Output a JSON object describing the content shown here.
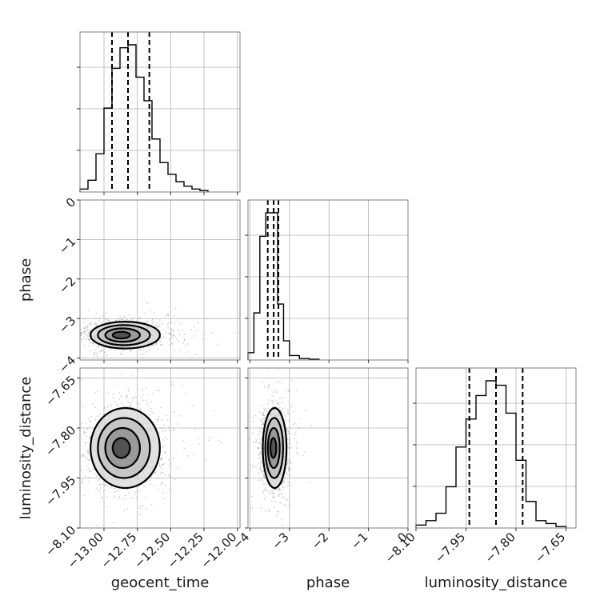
{
  "chart_data": {
    "type": "corner",
    "parameters": [
      "geocent_time",
      "phase",
      "luminosity_distance"
    ],
    "grid": true,
    "axes": {
      "geocent_time": {
        "label": "geocent_time",
        "lim": [
          -13.18,
          -11.98
        ],
        "ticks": [
          -13.0,
          -12.75,
          -12.5,
          -12.25,
          -12.0
        ],
        "tick_labels": [
          "−13.00",
          "−12.75",
          "−12.50",
          "−12.25",
          "−12.00"
        ]
      },
      "phase": {
        "label": "phase",
        "lim": [
          -4.05,
          0.0
        ],
        "ticks": [
          -4,
          -3,
          -2,
          -1,
          0
        ],
        "tick_labels": [
          "−4",
          "−3",
          "−2",
          "−1",
          "0"
        ]
      },
      "luminosity_distance": {
        "label": "luminosity_distance",
        "lim": [
          -8.1,
          -7.62
        ],
        "ticks": [
          -8.1,
          -7.95,
          -7.8,
          -7.65
        ],
        "tick_labels": [
          "−8.10",
          "−7.95",
          "−7.80",
          "−7.65"
        ]
      }
    },
    "histograms": [
      {
        "parameter": "geocent_time",
        "bin_edges": [
          -13.18,
          -13.12,
          -13.06,
          -13.0,
          -12.94,
          -12.88,
          -12.82,
          -12.76,
          -12.7,
          -12.64,
          -12.58,
          -12.52,
          -12.46,
          -12.4,
          -12.34,
          -12.28,
          -12.22
        ],
        "counts": [
          0.02,
          0.08,
          0.26,
          0.57,
          0.84,
          0.98,
          1.0,
          0.78,
          0.62,
          0.36,
          0.2,
          0.12,
          0.07,
          0.04,
          0.02,
          0.01
        ],
        "quantiles": [
          -12.94,
          -12.82,
          -12.66
        ]
      },
      {
        "parameter": "phase",
        "bin_edges": [
          -4.05,
          -3.9,
          -3.75,
          -3.6,
          -3.45,
          -3.3,
          -3.15,
          -3.0,
          -2.75,
          -2.5,
          -2.25
        ],
        "counts": [
          0.05,
          0.32,
          0.84,
          1.0,
          1.0,
          0.38,
          0.13,
          0.03,
          0.01,
          0.005
        ],
        "quantiles": [
          -3.55,
          -3.4,
          -3.28
        ]
      },
      {
        "parameter": "luminosity_distance",
        "bin_edges": [
          -8.1,
          -8.07,
          -8.04,
          -8.01,
          -7.98,
          -7.95,
          -7.92,
          -7.89,
          -7.86,
          -7.83,
          -7.8,
          -7.77,
          -7.74,
          -7.71,
          -7.68,
          -7.65
        ],
        "counts": [
          0.02,
          0.05,
          0.1,
          0.28,
          0.55,
          0.74,
          0.9,
          1.0,
          0.97,
          0.78,
          0.46,
          0.18,
          0.05,
          0.03,
          0.01
        ],
        "quantiles": [
          -7.94,
          -7.86,
          -7.78
        ]
      }
    ],
    "scatter_panels": [
      {
        "x": "geocent_time",
        "y": "phase",
        "center": [
          -12.88,
          -3.42
        ],
        "sigma": [
          0.13,
          0.17
        ],
        "corr": 0.1,
        "contour_levels_sigma": [
          0.5,
          1.0,
          1.5,
          2.0
        ]
      },
      {
        "x": "geocent_time",
        "y": "luminosity_distance",
        "center": [
          -12.88,
          -7.86
        ],
        "sigma": [
          0.13,
          0.06
        ],
        "corr": 0.05,
        "contour_levels_sigma": [
          0.5,
          1.0,
          1.5,
          2.0
        ]
      },
      {
        "x": "phase",
        "y": "luminosity_distance",
        "center": [
          -3.42,
          -7.86
        ],
        "sigma": [
          0.15,
          0.06
        ],
        "corr": 0.0,
        "contour_levels_sigma": [
          0.5,
          1.0,
          1.5,
          2.0
        ]
      }
    ]
  }
}
